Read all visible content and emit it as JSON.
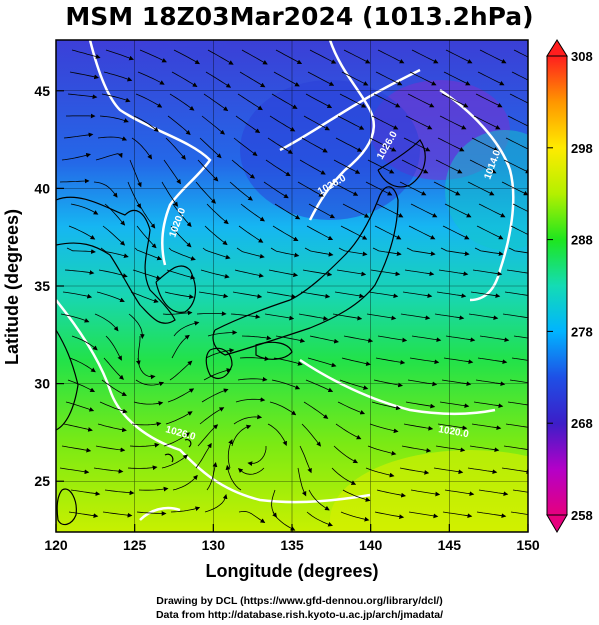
{
  "title": "MSM 18Z03Mar2024 (1013.2hPa)",
  "map": {
    "lon_range": [
      120,
      150
    ],
    "lat_range": [
      22.4,
      47.6
    ],
    "x_ticks": [
      120,
      125,
      130,
      135,
      140,
      145,
      150
    ],
    "y_ticks": [
      25,
      30,
      35,
      40,
      45
    ],
    "xlabel": "Longitude (degrees)",
    "ylabel": "Latitude  (degrees)",
    "grid": true
  },
  "colorbar": {
    "ticks": [
      258,
      268,
      278,
      288,
      298,
      308
    ],
    "range": [
      258,
      308
    ],
    "colors": [
      "#e6007e",
      "#b400c8",
      "#3c1ec8",
      "#1e50e6",
      "#00b4ff",
      "#14dcb4",
      "#1ee61e",
      "#b4f000",
      "#ffeb00",
      "#ff9600",
      "#ff3c00",
      "#ff1e1e"
    ]
  },
  "isobar_labels": [
    "1020.0",
    "1026.0",
    "1026.0",
    "1026.0",
    "1020.0",
    "1014.0",
    "1016.0"
  ],
  "credits": {
    "line1": "Drawing by DCL (https://www.gfd-dennou.org/library/dcl/)",
    "line2": "Data from http://database.rish.kyoto-u.ac.jp/arch/jmadata/"
  },
  "colors": {
    "contour": "#ffffff",
    "land_outline": "#000000",
    "streamline": "#000000"
  }
}
